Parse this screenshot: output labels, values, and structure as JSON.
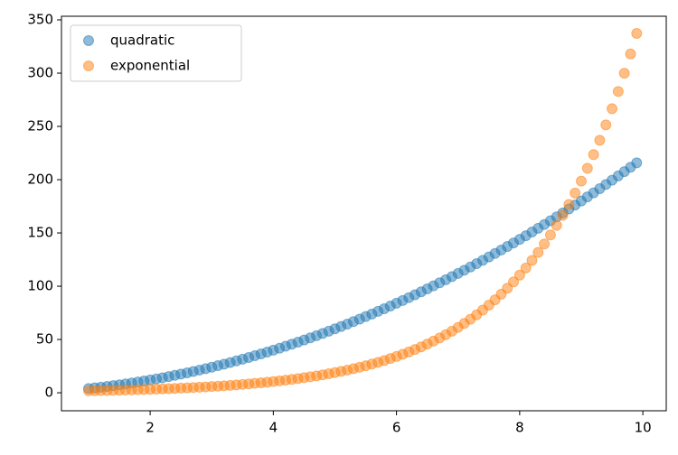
{
  "chart_data": {
    "type": "scatter",
    "x": [
      1.0,
      1.1,
      1.2,
      1.3,
      1.4,
      1.5,
      1.6,
      1.7,
      1.8,
      1.9,
      2.0,
      2.1,
      2.2,
      2.3,
      2.4,
      2.5,
      2.6,
      2.7,
      2.8,
      2.9,
      3.0,
      3.1,
      3.2,
      3.3,
      3.4,
      3.5,
      3.6,
      3.7,
      3.8,
      3.9,
      4.0,
      4.1,
      4.2,
      4.3,
      4.4,
      4.5,
      4.6,
      4.7,
      4.8,
      4.9,
      5.0,
      5.1,
      5.2,
      5.3,
      5.4,
      5.5,
      5.6,
      5.7,
      5.8,
      5.9,
      6.0,
      6.1,
      6.2,
      6.3,
      6.4,
      6.5,
      6.6,
      6.7,
      6.8,
      6.9,
      7.0,
      7.1,
      7.2,
      7.3,
      7.4,
      7.5,
      7.6,
      7.7,
      7.8,
      7.9,
      8.0,
      8.1,
      8.2,
      8.3,
      8.4,
      8.5,
      8.6,
      8.7,
      8.8,
      8.9,
      9.0,
      9.1,
      9.2,
      9.3,
      9.4,
      9.5,
      9.6,
      9.7,
      9.8,
      9.9
    ],
    "series": [
      {
        "name": "quadratic",
        "color": "#1f77b4",
        "values": [
          4,
          4.62,
          5.28,
          5.98,
          6.72,
          7.5,
          8.32,
          9.18,
          10.08,
          11.02,
          12,
          13.02,
          14.08,
          15.18,
          16.32,
          17.5,
          18.72,
          19.98,
          21.28,
          22.62,
          24,
          25.42,
          26.88,
          28.38,
          29.92,
          31.5,
          33.12,
          34.78,
          36.48,
          38.22,
          40,
          41.82,
          43.68,
          45.58,
          47.52,
          49.5,
          51.52,
          53.58,
          55.68,
          57.82,
          60,
          62.22,
          64.48,
          66.78,
          69.12,
          71.5,
          73.92,
          76.38,
          78.88,
          81.42,
          84,
          86.62,
          89.28,
          91.98,
          94.72,
          97.5,
          100.32,
          103.18,
          106.08,
          109.02,
          112,
          115.02,
          118.08,
          121.18,
          124.32,
          127.5,
          130.72,
          133.98,
          137.28,
          140.62,
          144,
          147.42,
          150.88,
          154.38,
          157.92,
          161.5,
          165.12,
          168.78,
          172.48,
          176.22,
          180,
          183.82,
          187.68,
          191.58,
          195.52,
          199.5,
          203.52,
          207.58,
          211.68,
          215.82
        ]
      },
      {
        "name": "exponential",
        "color": "#ff7f0e",
        "values": [
          1.8,
          1.91,
          2.02,
          2.15,
          2.28,
          2.42,
          2.56,
          2.72,
          2.88,
          3.06,
          3.24,
          3.44,
          3.65,
          3.87,
          4.1,
          4.35,
          4.61,
          4.89,
          5.19,
          5.5,
          5.84,
          6.19,
          6.56,
          6.96,
          7.38,
          7.83,
          8.3,
          8.81,
          9.34,
          9.91,
          10.51,
          11.14,
          11.82,
          12.53,
          13.29,
          14.1,
          14.95,
          15.86,
          16.82,
          17.83,
          18.92,
          20.06,
          21.28,
          22.56,
          23.93,
          25.38,
          26.92,
          28.55,
          30.28,
          32.11,
          34.06,
          36.12,
          38.31,
          40.63,
          43.09,
          45.7,
          48.47,
          51.4,
          54.52,
          57.82,
          61.32,
          65.03,
          68.97,
          73.15,
          77.58,
          82.28,
          87.26,
          92.55,
          98.15,
          104.09,
          110.39,
          117.07,
          124.17,
          131.68,
          139.66,
          148.12,
          157.09,
          166.6,
          176.69,
          187.39,
          198.7,
          210.7,
          223.5,
          237.0,
          251.4,
          266.6,
          282.8,
          299.9,
          318.0,
          337.3
        ]
      }
    ],
    "xlim": [
      0.56,
      10.38
    ],
    "xticks": [
      2,
      4,
      6,
      8,
      10
    ],
    "ylim": [
      -16.9,
      353.4
    ],
    "yticks": [
      0,
      50,
      100,
      150,
      200,
      250,
      300,
      350
    ],
    "grid": false,
    "legend": "upper left",
    "alpha": 0.5
  }
}
